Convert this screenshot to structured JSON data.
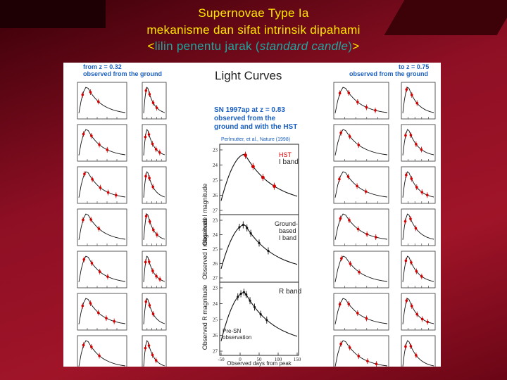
{
  "slide": {
    "title_line1": "Supernovae Type Ia",
    "title_line2": "mekanisme dan sifat intrinsik dipahami",
    "title_line3_open": "<",
    "title_line3_teal1": "lilin penentu jarak (",
    "title_line3_italic": "standard candle",
    "title_line3_teal2": ")",
    "title_line3_close": ">"
  },
  "figure": {
    "left_heading_l1": "from z = 0.32",
    "left_heading_l2": "observed from the ground",
    "right_heading_l1": "to z = 0.75",
    "right_heading_l2": "observed from the ground",
    "center_title": "Light Curves",
    "sn_l1": "SN 1997ap  at  z = 0.83",
    "sn_l2": "observed from the",
    "sn_l3": "ground and with the HST",
    "citation": "Perlmutter, et al., Nature (1998)",
    "ylabel": "Observed I magnitude",
    "ylabel3": "Observed R magnitude",
    "xlabel": "Observed days from peak",
    "xticks": [
      "-50",
      "0",
      "50",
      "100",
      "150"
    ],
    "yticks": [
      "23",
      "24",
      "25",
      "26",
      "27"
    ],
    "band1_l1": "HST",
    "band1_l2": "I band",
    "band2_l1": "Ground-",
    "band2_l2": "based",
    "band2_l3": "I band",
    "band3": "R band",
    "presn_l1": "Pre-SN",
    "presn_l2": "observation",
    "accent_red": "#d40000",
    "accent_blue": "#1a5fc0"
  }
}
